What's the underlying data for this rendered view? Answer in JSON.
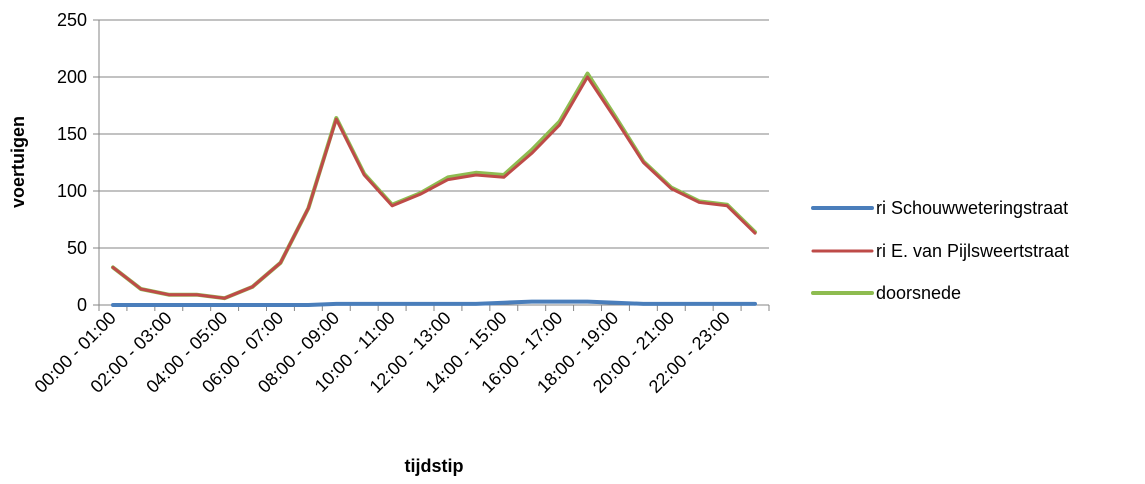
{
  "chart_data": {
    "type": "line",
    "title": "",
    "xlabel": "tijdstip",
    "ylabel": "voertuigen",
    "ylim": [
      0,
      250
    ],
    "yticks": [
      0,
      50,
      100,
      150,
      200,
      250
    ],
    "grid": "horizontal",
    "legend_position": "right",
    "categories": [
      "00:00 - 01:00",
      "01:00 - 02:00",
      "02:00 - 03:00",
      "03:00 - 04:00",
      "04:00 - 05:00",
      "05:00 - 06:00",
      "06:00 - 07:00",
      "07:00 - 08:00",
      "08:00 - 09:00",
      "09:00 - 10:00",
      "10:00 - 11:00",
      "11:00 - 12:00",
      "12:00 - 13:00",
      "13:00 - 14:00",
      "14:00 - 15:00",
      "15:00 - 16:00",
      "16:00 - 17:00",
      "17:00 - 18:00",
      "18:00 - 19:00",
      "19:00 - 20:00",
      "20:00 - 21:00",
      "21:00 - 22:00",
      "22:00 - 23:00",
      "23:00 - 24:00"
    ],
    "shown_category_labels": [
      "00:00 - 01:00",
      "02:00 - 03:00",
      "04:00 - 05:00",
      "06:00 - 07:00",
      "08:00 - 09:00",
      "10:00 - 11:00",
      "12:00 - 13:00",
      "14:00 - 15:00",
      "16:00 - 17:00",
      "18:00 - 19:00",
      "20:00 - 21:00",
      "22:00 - 23:00"
    ],
    "series": [
      {
        "name": "ri Schouwweteringstraat",
        "color": "#4a7ebb",
        "values": [
          0,
          0,
          0,
          0,
          0,
          0,
          0,
          0,
          1,
          1,
          1,
          1,
          1,
          1,
          2,
          3,
          3,
          3,
          2,
          1,
          1,
          1,
          1,
          1
        ]
      },
      {
        "name": "ri E. van Pijlsweertstraat",
        "color": "#be4b48",
        "values": [
          33,
          14,
          9,
          9,
          6,
          16,
          37,
          85,
          163,
          114,
          87,
          97,
          110,
          114,
          112,
          133,
          158,
          200,
          163,
          125,
          102,
          90,
          87,
          63
        ]
      },
      {
        "name": "doorsnede",
        "color": "#8ebc50",
        "values": [
          33,
          14,
          9,
          9,
          6,
          16,
          37,
          85,
          164,
          115,
          88,
          98,
          112,
          116,
          114,
          136,
          161,
          203,
          165,
          126,
          103,
          91,
          88,
          64
        ]
      }
    ]
  }
}
